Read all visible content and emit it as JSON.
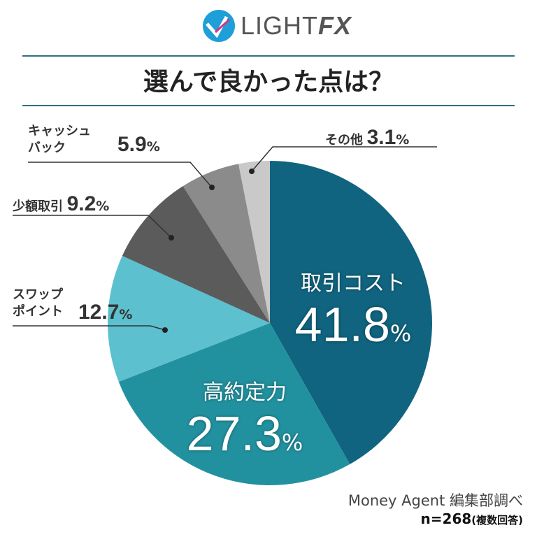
{
  "logo": {
    "text": "LIGHT",
    "text_fx": "FX"
  },
  "title": "選んで良かった点は？",
  "chart_data": {
    "type": "pie",
    "start": "top, clockwise",
    "categories": [
      "取引コスト",
      "高約定力",
      "スワップポイント",
      "少額取引",
      "キャッシュバック",
      "その他"
    ],
    "labels": {
      "cost": "取引コスト",
      "exec": "高約定力",
      "swap1": "スワップ",
      "swap2": "ポイント",
      "small": "少額取引",
      "cb1": "キャッシュ",
      "cb2": "バック",
      "other": "その他"
    },
    "values": [
      41.8,
      27.3,
      12.7,
      9.2,
      5.9,
      3.1
    ],
    "value_labels": [
      "41.8",
      "27.3",
      "12.7",
      "9.2",
      "5.9",
      "3.1"
    ],
    "unit": "%",
    "colors": [
      "#10647f",
      "#22919f",
      "#5cc0cf",
      "#5b5b5b",
      "#8b8b8b",
      "#c9c9c9"
    ]
  },
  "source": "Money Agent 編集部調べ",
  "n": "n=268",
  "n_note": "(複数回答)"
}
